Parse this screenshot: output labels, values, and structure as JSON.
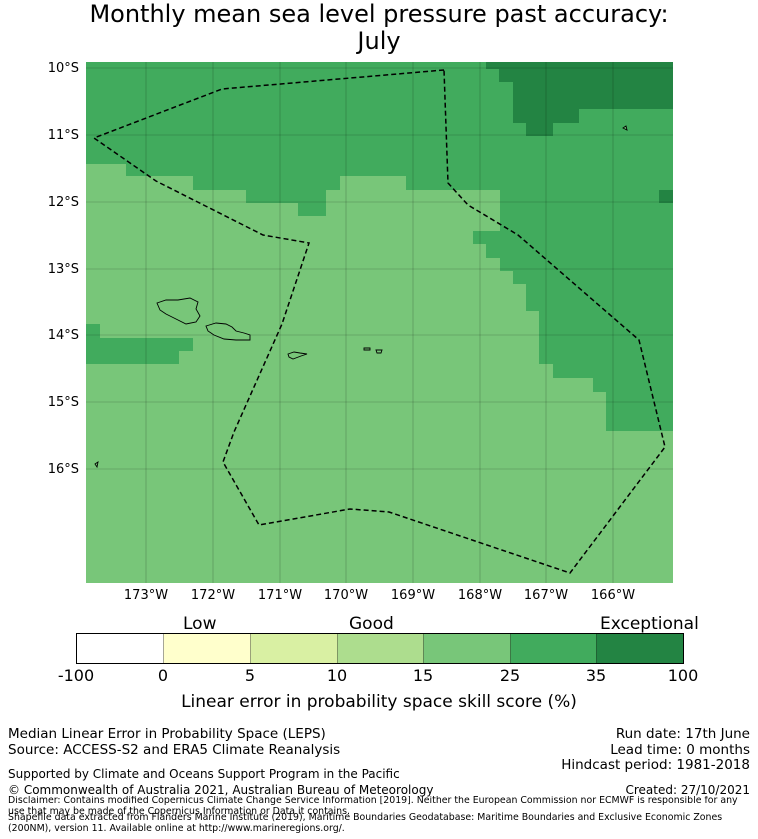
{
  "title_line1": "Monthly mean sea level pressure past accuracy:",
  "title_line2": "July",
  "latitude_labels": [
    "10°S",
    "11°S",
    "12°S",
    "13°S",
    "14°S",
    "15°S",
    "16°S"
  ],
  "longitude_labels": [
    "173°W",
    "172°W",
    "171°W",
    "170°W",
    "169°W",
    "168°W",
    "167°W",
    "166°W"
  ],
  "map_colors": {
    "skill_15_25": "#78c679",
    "skill_25_35": "#41ab5d",
    "skill_35_100": "#238443",
    "border_line": "#000000",
    "land_outline": "#000000"
  },
  "colorbar": {
    "categories": [
      "Low",
      "Good",
      "Exceptional"
    ],
    "ticks": [
      "-100",
      "0",
      "5",
      "10",
      "15",
      "25",
      "35",
      "100"
    ],
    "colors": [
      "#ffffff",
      "#ffffcc",
      "#d9f0a3",
      "#addd8e",
      "#78c679",
      "#41ab5d",
      "#238443"
    ],
    "label": "Linear error in probability space skill score (%)"
  },
  "footer": {
    "method": "Median Linear Error in Probability Space (LEPS)",
    "source": "Source: ACCESS-S2 and ERA5 Climate Reanalysis",
    "run_date": "Run date: 17th June",
    "lead_time": "Lead time: 0 months",
    "hindcast": "Hindcast period: 1981-2018",
    "support": "Supported by Climate and Oceans Support Program in the Pacific",
    "copyright": "© Commonwealth of Australia 2021, Australian Bureau of Meteorology",
    "created": "Created: 27/10/2021",
    "disclaimer": "Disclaimer: Contains modified Copernicus Climate Change Service Information [2019]. Neither the European Commission nor ECMWF is responsible for any use that may be made of the Copernicus Information or Data it contains.",
    "shapefile": "Shapefile data extracted from Flanders Marine Institute (2019), Maritime Boundaries Geodatabase: Maritime Boundaries and Exclusive Economic Zones (200NM), version 11. Available online at http://www.marineregions.org/."
  }
}
